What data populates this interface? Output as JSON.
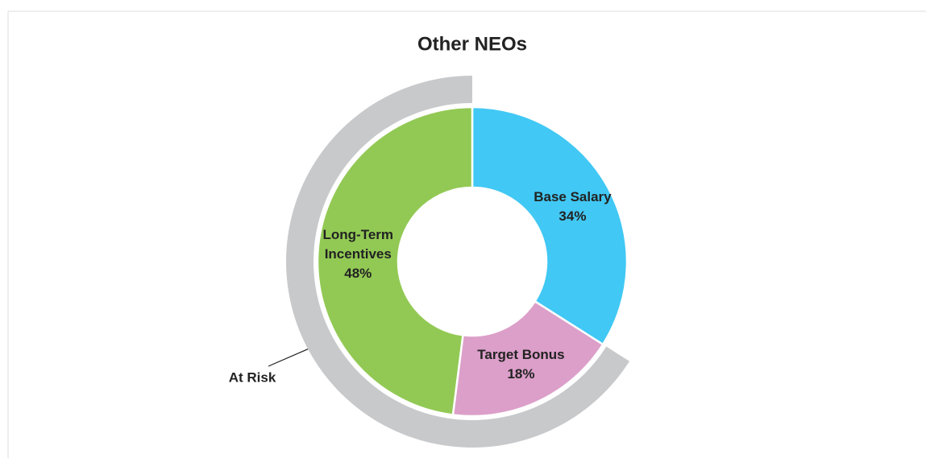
{
  "chart_data": {
    "type": "donut",
    "title": "Other NEOs",
    "categories": [
      "Base Salary",
      "Target Bonus",
      "Long-Term Incentives"
    ],
    "values": [
      34,
      18,
      48
    ],
    "value_labels": [
      "34%",
      "18%",
      "48%"
    ],
    "colors": [
      "#41c8f4",
      "#dc9fc9",
      "#92c954"
    ],
    "outer_ring": {
      "label": "At Risk",
      "categories": [
        "Target Bonus",
        "Long-Term Incentives"
      ],
      "color": "#c8c9cb"
    }
  }
}
